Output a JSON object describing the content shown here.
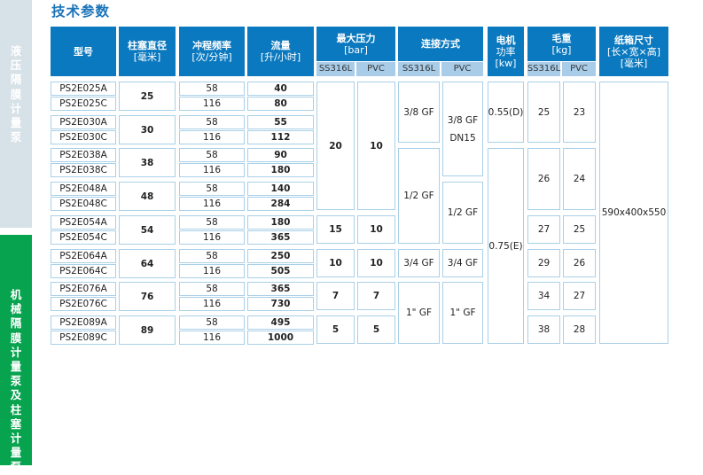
{
  "sidebar": {
    "tab1": "液压隔膜计量泵",
    "tab2": "机械隔膜计量泵及柱塞计量泵"
  },
  "title": "技术参数",
  "colors": {
    "header": "#0b79bf",
    "subheader": "#a9cde9",
    "border": "#a9d0e8",
    "sidebar_active": "#07a34f",
    "title": "#1a74b9"
  },
  "headers": {
    "model": "型号",
    "plunger": [
      "柱塞直径",
      "[毫米]"
    ],
    "stroke": [
      "冲程频率",
      "[次/分钟]"
    ],
    "flow": [
      "流量",
      "[升/小时]"
    ],
    "pressure": [
      "最大压力",
      "[bar]"
    ],
    "connection": [
      "连接方式"
    ],
    "motor": [
      "电机",
      "功率",
      "[kw]"
    ],
    "weight": [
      "毛重",
      "[kg]"
    ],
    "carton": [
      "纸箱尺寸",
      "[长×宽×高]",
      "[毫米]"
    ],
    "sub_ss": "SS316L",
    "sub_pvc": "PVC"
  },
  "rows": [
    {
      "models": [
        "PS2E025A",
        "PS2E025C"
      ],
      "plunger": "25",
      "stroke": [
        "58",
        "116"
      ],
      "flow": [
        "40",
        "80"
      ]
    },
    {
      "models": [
        "PS2E030A",
        "PS2E030C"
      ],
      "plunger": "30",
      "stroke": [
        "58",
        "116"
      ],
      "flow": [
        "55",
        "112"
      ]
    },
    {
      "models": [
        "PS2E038A",
        "PS2E038C"
      ],
      "plunger": "38",
      "stroke": [
        "58",
        "116"
      ],
      "flow": [
        "90",
        "180"
      ]
    },
    {
      "models": [
        "PS2E048A",
        "PS2E048C"
      ],
      "plunger": "48",
      "stroke": [
        "58",
        "116"
      ],
      "flow": [
        "140",
        "284"
      ]
    },
    {
      "models": [
        "PS2E054A",
        "PS2E054C"
      ],
      "plunger": "54",
      "stroke": [
        "58",
        "116"
      ],
      "flow": [
        "180",
        "365"
      ]
    },
    {
      "models": [
        "PS2E064A",
        "PS2E064C"
      ],
      "plunger": "64",
      "stroke": [
        "58",
        "116"
      ],
      "flow": [
        "250",
        "505"
      ]
    },
    {
      "models": [
        "PS2E076A",
        "PS2E076C"
      ],
      "plunger": "76",
      "stroke": [
        "58",
        "116"
      ],
      "flow": [
        "365",
        "730"
      ]
    },
    {
      "models": [
        "PS2E089A",
        "PS2E089C"
      ],
      "plunger": "89",
      "stroke": [
        "58",
        "116"
      ],
      "flow": [
        "495",
        "1000"
      ]
    }
  ],
  "pressure_ss": [
    "20",
    "15",
    "10",
    "7",
    "5"
  ],
  "pressure_pvc": [
    "10",
    "10",
    "10",
    "7",
    "5"
  ],
  "connection_ss": [
    "3/8 GF",
    "1/2 GF",
    "3/4 GF",
    "1\" GF"
  ],
  "connection_pvc": [
    "3/8 GF\nDN15",
    "1/2 GF",
    "3/4 GF",
    "1\" GF"
  ],
  "motor": [
    "0.55(D)",
    "0.75(E)"
  ],
  "weight_ss": [
    "25",
    "26",
    "27",
    "29",
    "34",
    "38"
  ],
  "weight_pvc": [
    "23",
    "24",
    "25",
    "26",
    "27",
    "28"
  ],
  "carton": "590x400x550"
}
